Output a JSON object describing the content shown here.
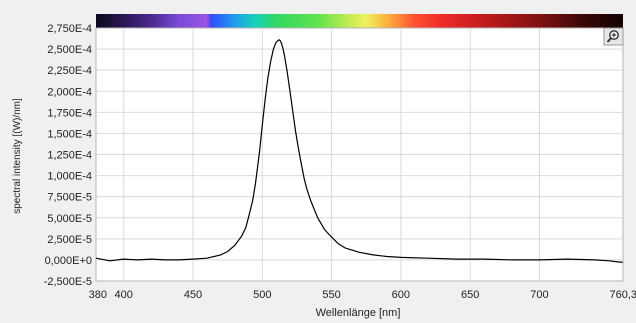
{
  "chart_data": {
    "type": "line",
    "xlabel": "Wellenlänge [nm]",
    "ylabel": "spectral intensity [(W)/nm]",
    "xlim": [
      380,
      760.3
    ],
    "ylim": [
      -2.5e-05,
      0.000275
    ],
    "grid": true,
    "x_ticks": [
      {
        "value": 380,
        "label": "380"
      },
      {
        "value": 400,
        "label": "400"
      },
      {
        "value": 450,
        "label": "450"
      },
      {
        "value": 500,
        "label": "500"
      },
      {
        "value": 550,
        "label": "550"
      },
      {
        "value": 600,
        "label": "600"
      },
      {
        "value": 650,
        "label": "650"
      },
      {
        "value": 700,
        "label": "700"
      },
      {
        "value": 760.3,
        "label": "760,3"
      }
    ],
    "y_ticks": [
      {
        "value": 0.000275,
        "label": "2,750E-4"
      },
      {
        "value": 0.00025,
        "label": "2,500E-4"
      },
      {
        "value": 0.000225,
        "label": "2,250E-4"
      },
      {
        "value": 0.0002,
        "label": "2,000E-4"
      },
      {
        "value": 0.000175,
        "label": "1,750E-4"
      },
      {
        "value": 0.00015,
        "label": "1,500E-4"
      },
      {
        "value": 0.000125,
        "label": "1,250E-4"
      },
      {
        "value": 0.0001,
        "label": "1,000E-4"
      },
      {
        "value": 7.5e-05,
        "label": "7,500E-5"
      },
      {
        "value": 5e-05,
        "label": "5,000E-5"
      },
      {
        "value": 2.5e-05,
        "label": "2,500E-5"
      },
      {
        "value": 0,
        "label": "0,000E+0"
      },
      {
        "value": -2.5e-05,
        "label": "-2,500E-5"
      }
    ],
    "series": [
      {
        "color": "#000000",
        "x": [
          380,
          390,
          400,
          410,
          420,
          430,
          440,
          450,
          460,
          470,
          475,
          480,
          485,
          488,
          490,
          493,
          495,
          498,
          500,
          502,
          504,
          506,
          508,
          510,
          512,
          513,
          514,
          515,
          516,
          518,
          520,
          522,
          524,
          526,
          528,
          530,
          532,
          535,
          538,
          540,
          545,
          550,
          555,
          560,
          570,
          580,
          590,
          600,
          620,
          640,
          660,
          680,
          700,
          720,
          740,
          750,
          760
        ],
        "y": [
          2e-06,
          -1e-06,
          1e-06,
          0,
          1e-06,
          0,
          0,
          1e-06,
          2e-06,
          6e-06,
          1e-05,
          1.7e-05,
          2.8e-05,
          3.8e-05,
          5e-05,
          7e-05,
          9e-05,
          0.000128,
          0.00016,
          0.00019,
          0.000215,
          0.000235,
          0.00025,
          0.000258,
          0.000261,
          0.00026,
          0.000256,
          0.00025,
          0.000242,
          0.000223,
          0.0002,
          0.000176,
          0.000153,
          0.000133,
          0.000115,
          9.8e-05,
          8.5e-05,
          7e-05,
          5.8e-05,
          5e-05,
          3.6e-05,
          2.7e-05,
          1.9e-05,
          1.4e-05,
          9e-06,
          6e-06,
          4e-06,
          3e-06,
          2e-06,
          1e-06,
          1e-06,
          0,
          0,
          1e-06,
          0,
          -1e-06,
          -3e-06
        ]
      }
    ]
  },
  "spectrum_bar": {
    "stops": [
      {
        "value": 380,
        "color": "#0a0a1e"
      },
      {
        "value": 400,
        "color": "#2a1656"
      },
      {
        "value": 420,
        "color": "#4a2a8e"
      },
      {
        "value": 440,
        "color": "#7a4ad8"
      },
      {
        "value": 460,
        "color": "#9a56e6"
      },
      {
        "value": 463,
        "color": "#2f4cff"
      },
      {
        "value": 480,
        "color": "#1f9ee8"
      },
      {
        "value": 495,
        "color": "#16d2b8"
      },
      {
        "value": 510,
        "color": "#30d860"
      },
      {
        "value": 540,
        "color": "#62e24c"
      },
      {
        "value": 560,
        "color": "#b8ea50"
      },
      {
        "value": 575,
        "color": "#f0f060"
      },
      {
        "value": 590,
        "color": "#ffb040"
      },
      {
        "value": 610,
        "color": "#ff5030"
      },
      {
        "value": 630,
        "color": "#ee2a2a"
      },
      {
        "value": 660,
        "color": "#c01c1c"
      },
      {
        "value": 700,
        "color": "#801212"
      },
      {
        "value": 730,
        "color": "#3c0808"
      },
      {
        "value": 760.3,
        "color": "#120202"
      }
    ]
  },
  "toolbar": {
    "zoom_icon": "magnifier-icon"
  }
}
